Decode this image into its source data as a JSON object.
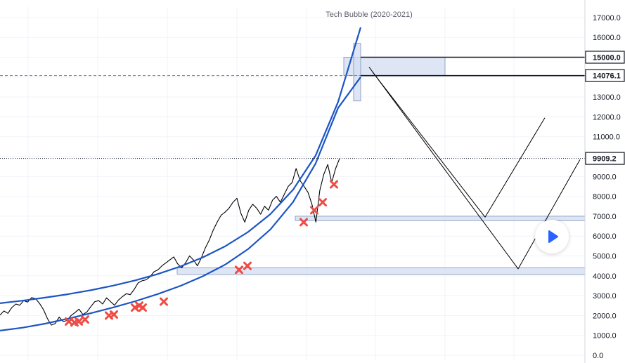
{
  "chart_data": {
    "type": "line",
    "title": "Tech Bubble (2020-2021)",
    "y_axis": {
      "side": "right",
      "ylim": [
        -100,
        17500
      ],
      "tick_values": [
        0,
        1000,
        2000,
        3000,
        4000,
        5000,
        6000,
        7000,
        8000,
        9000,
        10000,
        11000,
        12000,
        13000,
        14000,
        15000,
        16000,
        17000
      ],
      "tick_labels": [
        "0.0",
        "1000.0",
        "2000.0",
        "3000.0",
        "4000.0",
        "5000.0",
        "6000.0",
        "7000.0",
        "8000.0",
        "9000.0",
        "10000.0",
        "11000.0",
        "12000.0",
        "13000.0",
        "14000.0",
        "15000.0",
        "16000.0",
        "17000.0"
      ]
    },
    "price_labels": [
      {
        "label": "15000.0",
        "value": 15000,
        "line": "solid"
      },
      {
        "label": "14076.1",
        "value": 14076,
        "line": "dashed"
      },
      {
        "label": "9909.2",
        "value": 9909,
        "line": "dotted"
      }
    ],
    "grid": true,
    "series": [
      {
        "style": "price",
        "color": "#000000",
        "values": [
          2020,
          2230,
          2110,
          2400,
          2580,
          2520,
          2750,
          2680,
          2900,
          2850,
          2610,
          2300,
          1850,
          1520,
          1600,
          1920,
          1700,
          1750,
          2000,
          2150,
          2320,
          2050,
          2180,
          2450,
          2700,
          2750,
          2580,
          2890,
          2700,
          2520,
          2780,
          2950,
          3100,
          3050,
          3320,
          3650,
          3750,
          3800,
          3950,
          4200,
          4300,
          4500,
          4650,
          4800,
          4950,
          4600,
          4400,
          4650,
          5000,
          4800,
          4500,
          4900,
          5400,
          5800,
          6300,
          6700,
          7050,
          7200,
          7400,
          7700,
          7900,
          7150,
          6700,
          7300,
          7600,
          7400,
          7100,
          7500,
          7300,
          7800,
          8000,
          7700,
          8100,
          8500,
          8700,
          9400,
          8800,
          8500,
          8200,
          7600,
          6700,
          8300,
          9100,
          9600,
          8700,
          9400,
          9900
        ]
      },
      {
        "style": "upper-band",
        "color": "#1c55c4",
        "values": [
          2620,
          2750,
          2900,
          3070,
          3270,
          3500,
          3770,
          4090,
          4470,
          4930,
          5490,
          6200,
          7110,
          8330,
          10050,
          12750,
          16500
        ]
      },
      {
        "style": "lower-band",
        "color": "#1c55c4",
        "values": [
          1240,
          1390,
          1590,
          1840,
          2110,
          2400,
          2720,
          3080,
          3490,
          3980,
          4570,
          5340,
          6340,
          7710,
          9650,
          12450,
          14000
        ]
      },
      {
        "style": "projection-path-1",
        "color": "#000000",
        "points": [
          [
            530,
            14250
          ],
          [
            690,
            6950
          ],
          [
            775,
            11950
          ]
        ]
      },
      {
        "style": "projection-path-2",
        "color": "#000000",
        "points": [
          [
            525,
            14500
          ],
          [
            737,
            4350
          ],
          [
            825,
            9850
          ]
        ]
      }
    ],
    "markers": {
      "shape": "x",
      "color": "#ef4b45",
      "points": [
        [
          98,
          1700
        ],
        [
          106,
          1650
        ],
        [
          112,
          1700
        ],
        [
          121,
          1800
        ],
        [
          155,
          2000
        ],
        [
          162,
          2050
        ],
        [
          192,
          2400
        ],
        [
          198,
          2500
        ],
        [
          203,
          2400
        ],
        [
          233,
          2700
        ],
        [
          340,
          4300
        ],
        [
          352,
          4500
        ],
        [
          432,
          6700
        ],
        [
          447,
          7300
        ],
        [
          459,
          7700
        ],
        [
          475,
          8600
        ]
      ]
    },
    "zones": [
      {
        "name": "top-zone",
        "color": "#d3ddf1",
        "x0": 489,
        "x1": 633,
        "y0": 14076,
        "y1": 15000
      },
      {
        "name": "support-zone-upper",
        "color": "#d3ddf1",
        "x0": 420,
        "x1": 832,
        "y0": 6780,
        "y1": 7000
      },
      {
        "name": "support-zone-lower",
        "color": "#d3ddf1",
        "x0": 252,
        "x1": 832,
        "y0": 4080,
        "y1": 4400
      },
      {
        "name": "spike-zone",
        "color": "#d3ddf1",
        "x0": 503,
        "x1": 513,
        "y0": 12800,
        "y1": 15700
      }
    ]
  },
  "icons": {
    "play": "play-icon"
  },
  "colors": {
    "accent": "#2962ff",
    "band": "#1c55c4",
    "marker": "#ef4b45",
    "zone": "#d3ddf1"
  }
}
